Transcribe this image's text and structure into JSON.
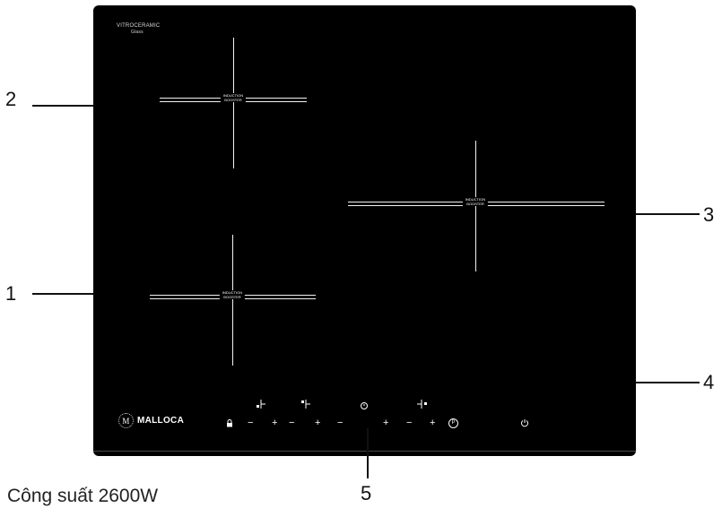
{
  "cooktop": {
    "glass_label": "VITROCERAMIC",
    "glass_sublabel": "Glass",
    "zone_label_line1": "INDUCTION",
    "zone_label_line2": "BOOSTER",
    "brand": "MALLOCA",
    "brand_initial": "M"
  },
  "callouts": [
    "1",
    "2",
    "3",
    "4",
    "5"
  ],
  "controls": {
    "lock_icon": "lock-icon",
    "minus": "−",
    "plus": "+",
    "timer_icon": "timer-icon",
    "pause_label": "P",
    "power_icon": "power-icon"
  },
  "caption": "Công suất 2600W"
}
